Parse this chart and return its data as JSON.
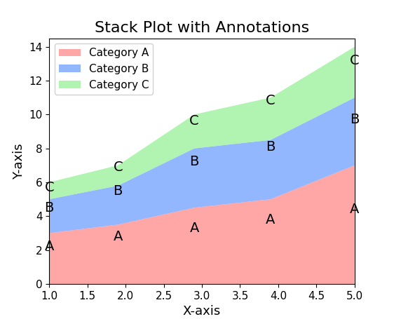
{
  "x": [
    1.0,
    1.9,
    2.9,
    3.9,
    5.0
  ],
  "y_a": [
    3,
    3.5,
    4.5,
    5.0,
    7.0
  ],
  "y_b": [
    2,
    2.3,
    3.5,
    3.5,
    4.0
  ],
  "y_c": [
    1,
    1.2,
    2.0,
    2.5,
    3.0
  ],
  "colors": [
    "#FF8080",
    "#6699FF",
    "#90EE90"
  ],
  "labels": [
    "Category A",
    "Category B",
    "Category C"
  ],
  "title": "Stack Plot with Annotations",
  "xlabel": "X-axis",
  "ylabel": "Y-axis",
  "ylim": [
    0,
    14.5
  ],
  "xlim": [
    1.0,
    5.0
  ],
  "annotations_a": {
    "positions": [
      [
        1.0,
        2.2
      ],
      [
        1.9,
        2.8
      ],
      [
        2.9,
        3.3
      ],
      [
        3.9,
        3.8
      ],
      [
        5.0,
        4.4
      ]
    ],
    "label": "A"
  },
  "annotations_b": {
    "positions": [
      [
        1.0,
        4.5
      ],
      [
        1.9,
        5.5
      ],
      [
        2.9,
        7.2
      ],
      [
        3.9,
        8.1
      ],
      [
        5.0,
        9.7
      ]
    ],
    "label": "B"
  },
  "annotations_c": {
    "positions": [
      [
        1.0,
        5.7
      ],
      [
        1.9,
        6.9
      ],
      [
        2.9,
        9.6
      ],
      [
        3.9,
        10.8
      ],
      [
        5.0,
        13.2
      ]
    ],
    "label": "C"
  },
  "annotation_fontsize": 14,
  "title_fontsize": 16,
  "label_fontsize": 13,
  "legend_fontsize": 11,
  "tick_fontsize": 11
}
